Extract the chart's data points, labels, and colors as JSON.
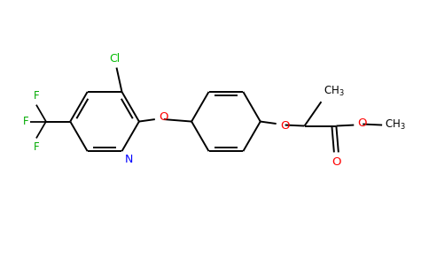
{
  "background_color": "#ffffff",
  "bond_color": "#000000",
  "cl_color": "#00bb00",
  "n_color": "#0000ff",
  "o_color": "#ff0000",
  "f_color": "#00aa00",
  "line_width": 1.4,
  "figsize": [
    4.84,
    3.0
  ],
  "dpi": 100,
  "xlim": [
    0,
    9.68
  ],
  "ylim": [
    0,
    6.0
  ]
}
